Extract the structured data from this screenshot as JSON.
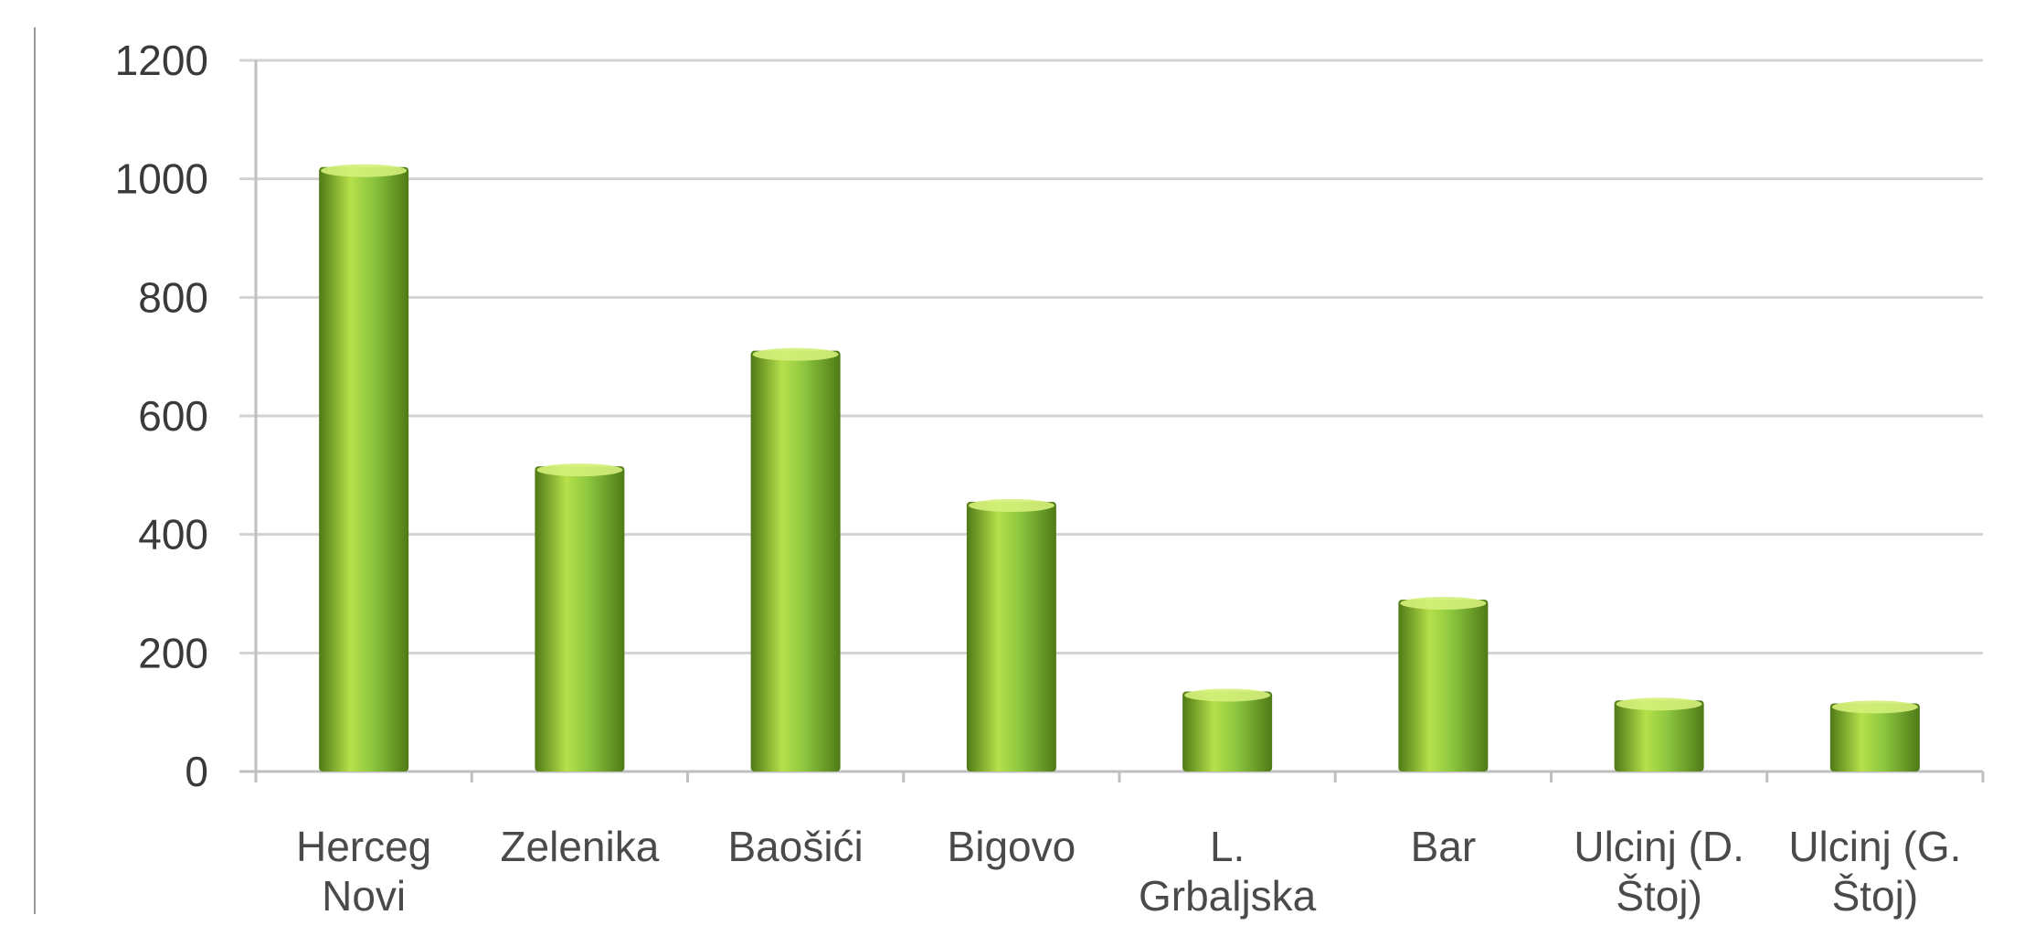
{
  "chart_data": {
    "type": "bar",
    "categories": [
      [
        "Herceg",
        "Novi"
      ],
      [
        "Zelenika"
      ],
      [
        "Baošići"
      ],
      [
        "Bigovo"
      ],
      [
        "L.",
        "Grbaljska"
      ],
      [
        "Bar"
      ],
      [
        "Ulcinj (D.",
        "Štoj)"
      ],
      [
        "Ulcinj (G.",
        "Štoj)"
      ]
    ],
    "values": [
      1020,
      515,
      710,
      455,
      135,
      290,
      120,
      115
    ],
    "yticks": [
      "0",
      "200",
      "400",
      "600",
      "800",
      "1000",
      "1200"
    ],
    "ylim": [
      0,
      1200
    ],
    "grid": true,
    "legend": "none",
    "colors": {
      "bar_light": "#b6e04a",
      "bar_mid": "#8cc63f",
      "bar_dark": "#4f7a16",
      "bar_top": "#d4f07a",
      "grid": "#d3d3d3",
      "axis": "#bfbfbf",
      "frame": "#9a9a9a"
    }
  }
}
